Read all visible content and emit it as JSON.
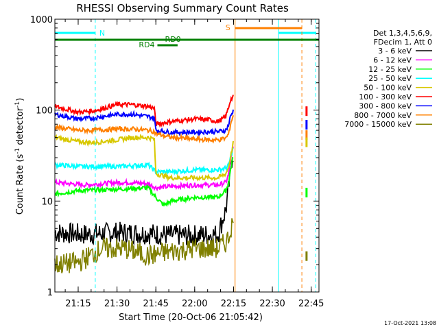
{
  "chart_data": {
    "type": "line",
    "title": "RHESSI Observing Summary Count Rates",
    "xlabel": "Start Time (20-Oct-06 21:05:42)",
    "ylabel_main": "Count Rate (s",
    "ylabel_sup1": "-1",
    "ylabel_mid": " detector",
    "ylabel_sup2": "-1",
    "ylabel_end": ")",
    "y_scale": "log",
    "ylim": [
      1,
      1000
    ],
    "xlim_minutes": [
      21.1,
      22.8
    ],
    "x_ticks": [
      {
        "t": 21.25,
        "label": "21:15"
      },
      {
        "t": 21.5,
        "label": "21:30"
      },
      {
        "t": 21.75,
        "label": "21:45"
      },
      {
        "t": 22.0,
        "label": "22:00"
      },
      {
        "t": 22.25,
        "label": "22:15"
      },
      {
        "t": 22.5,
        "label": "22:30"
      },
      {
        "t": 22.75,
        "label": "22:45"
      }
    ],
    "y_ticks": [
      {
        "v": 1,
        "label": "1"
      },
      {
        "v": 10,
        "label": "10"
      },
      {
        "v": 100,
        "label": "100"
      },
      {
        "v": 1000,
        "label": "1000"
      }
    ],
    "legend_header": [
      "Det 1,3,4,5,6,9,",
      "FDecim 1, Att 0"
    ],
    "series": [
      {
        "name": "3 - 6 keV",
        "color": "#000000",
        "x": [
          21.1,
          21.3,
          21.5,
          21.7,
          21.85,
          22.0,
          22.15,
          22.2,
          22.22,
          22.23,
          22.25
        ],
        "y": [
          4.5,
          4.3,
          4.5,
          4.4,
          4.2,
          4.2,
          4.3,
          8,
          14,
          25,
          35
        ]
      },
      {
        "name": "6 - 12 keV",
        "color": "#ff00ff",
        "x": [
          21.1,
          21.3,
          21.5,
          21.6,
          21.7,
          21.75,
          21.85,
          22.0,
          22.15,
          22.2,
          22.22,
          22.23,
          22.25
        ],
        "y": [
          16,
          15,
          16,
          16,
          15.5,
          14,
          14.5,
          15,
          15,
          16,
          20,
          28,
          40
        ]
      },
      {
        "name": "12 - 25 keV",
        "color": "#00ff00",
        "x": [
          21.1,
          21.25,
          21.5,
          21.7,
          21.75,
          21.8,
          21.85,
          22.0,
          22.15,
          22.2,
          22.22,
          22.23,
          22.25
        ],
        "y": [
          12,
          13,
          13.5,
          14,
          11,
          9,
          10,
          11,
          11,
          13,
          16,
          22,
          32
        ]
      },
      {
        "name": "25 - 50 keV",
        "color": "#00ffff",
        "x": [
          21.1,
          21.25,
          21.35,
          21.5,
          21.7,
          21.75,
          21.85,
          22.0,
          22.15,
          22.2,
          22.22,
          22.23,
          22.25
        ],
        "y": [
          25,
          24,
          24,
          24,
          25,
          21,
          21,
          22,
          22,
          23,
          25,
          30,
          40
        ]
      },
      {
        "name": "50 - 100 keV",
        "color": "#d8c800",
        "x": [
          21.1,
          21.25,
          21.35,
          21.5,
          21.6,
          21.7,
          21.74,
          21.75,
          21.85,
          22.0,
          22.15,
          22.2,
          22.22,
          22.23,
          22.25
        ],
        "y": [
          50,
          45,
          44,
          47,
          50,
          50,
          48,
          20,
          18,
          18,
          18,
          20,
          24,
          30,
          45
        ]
      },
      {
        "name": "100 - 300 keV",
        "color": "#ff0000",
        "x": [
          21.1,
          21.25,
          21.35,
          21.5,
          21.6,
          21.7,
          21.74,
          21.75,
          21.85,
          22.0,
          22.1,
          22.15,
          22.18,
          22.2,
          22.22,
          22.23,
          22.25
        ],
        "y": [
          110,
          95,
          98,
          115,
          115,
          110,
          105,
          70,
          75,
          80,
          78,
          75,
          80,
          85,
          110,
          130,
          140
        ]
      },
      {
        "name": "300 - 800 keV",
        "color": "#0000ff",
        "x": [
          21.1,
          21.25,
          21.35,
          21.5,
          21.6,
          21.7,
          21.74,
          21.75,
          21.85,
          22.0,
          22.1,
          22.15,
          22.2,
          22.22,
          22.23,
          22.25
        ],
        "y": [
          90,
          80,
          82,
          90,
          90,
          85,
          82,
          60,
          57,
          57,
          58,
          58,
          60,
          70,
          85,
          100
        ]
      },
      {
        "name": "800 - 7000 keV",
        "color": "#ff8000",
        "x": [
          21.1,
          21.25,
          21.35,
          21.5,
          21.6,
          21.7,
          21.74,
          21.75,
          21.85,
          22.0,
          22.1,
          22.15,
          22.2,
          22.22,
          22.23,
          22.25
        ],
        "y": [
          65,
          60,
          60,
          62,
          62,
          60,
          58,
          55,
          50,
          48,
          47,
          47,
          49,
          55,
          70,
          90
        ]
      },
      {
        "name": "7000 - 15000 keV",
        "color": "#808000",
        "x": [
          21.1,
          21.25,
          21.4,
          21.55,
          21.7,
          21.85,
          22.0,
          22.15,
          22.2,
          22.22,
          22.23,
          22.25
        ],
        "y": [
          2,
          2.1,
          3,
          3,
          2.5,
          2.8,
          3,
          3,
          3.5,
          4,
          5,
          6
        ]
      }
    ],
    "late_points": [
      {
        "series": "100 - 300 keV",
        "y": 110
      },
      {
        "series": "300 - 800 keV",
        "y": 78
      },
      {
        "series": "800 - 7000 keV",
        "y": 60
      },
      {
        "series": "50 - 100 keV",
        "y": 50
      },
      {
        "series": "12 - 25 keV",
        "y": 14
      },
      {
        "series": "7000 - 15000 keV",
        "y": 2.8
      }
    ],
    "annotations": [
      {
        "id": "night-N",
        "label": "N",
        "color": "#00ffff"
      },
      {
        "id": "saa-S",
        "label": "S",
        "color": "#ff8000"
      },
      {
        "id": "rd0",
        "label": "RD0",
        "color": "#008000"
      },
      {
        "id": "rd4",
        "label": "RD4",
        "color": "#008000"
      }
    ],
    "grid": false,
    "legend_position": "right"
  },
  "footer": {
    "timestamp": "17-Oct-2021 13:08"
  }
}
